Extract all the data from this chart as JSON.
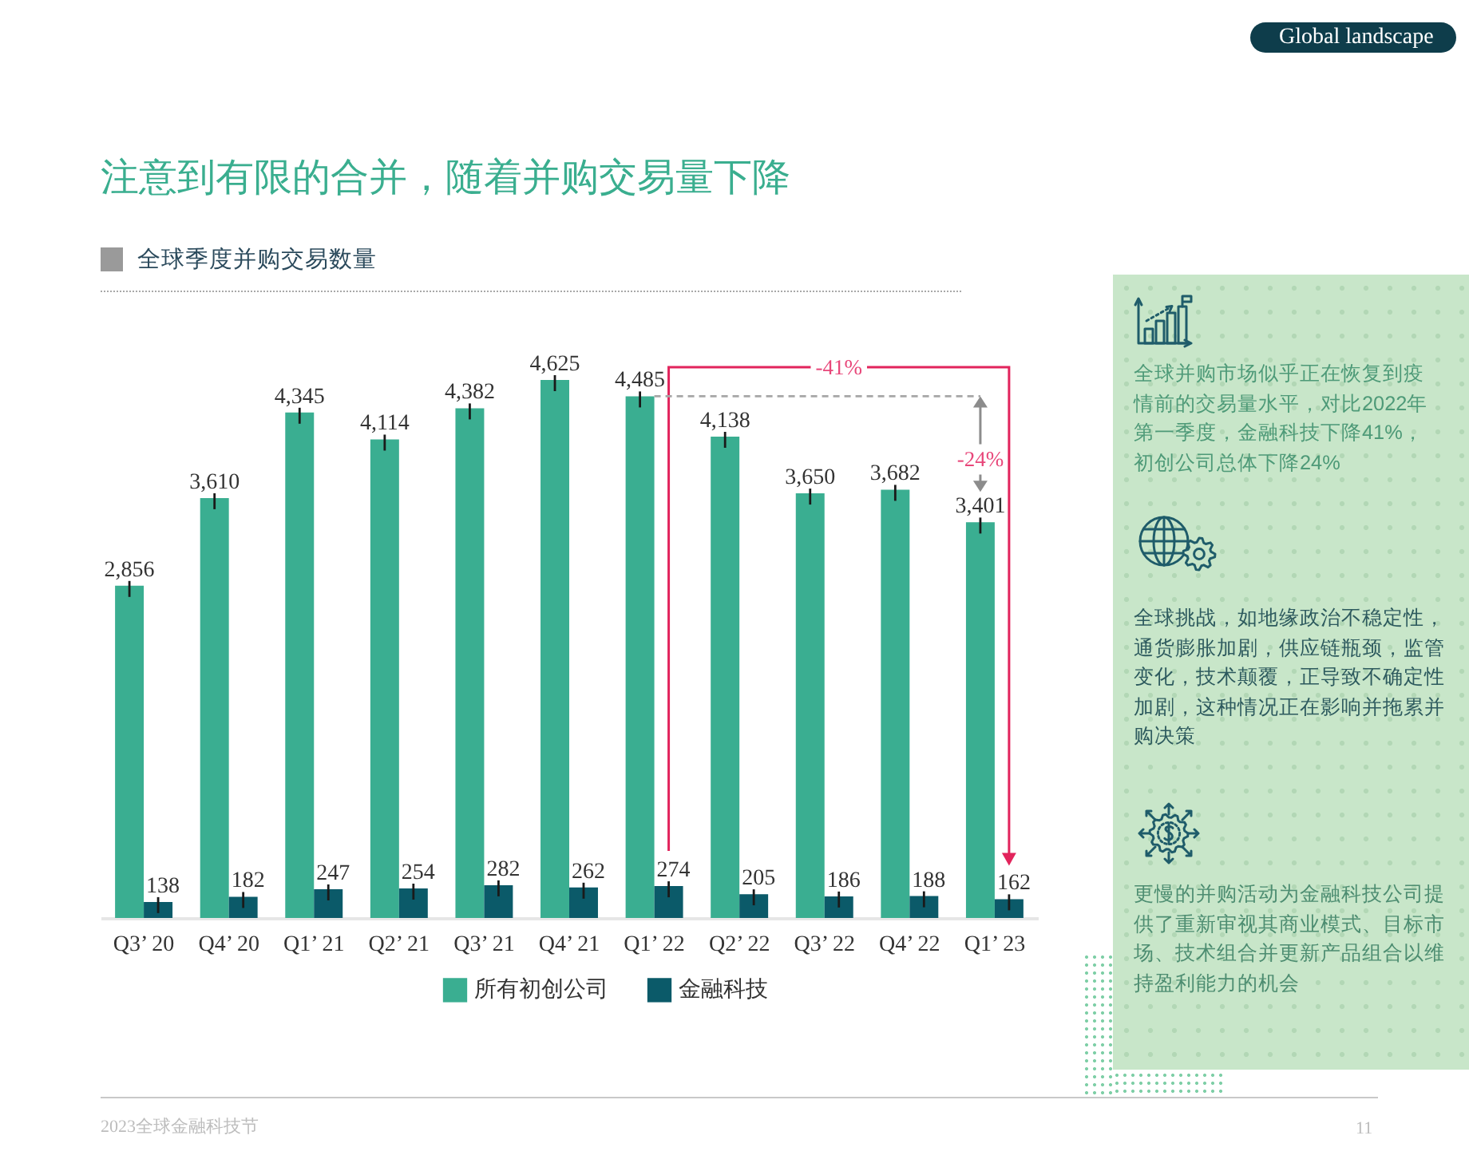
{
  "chart_data": [
    {
      "type": "bar",
      "title": "注意到有限的合并，随着并购交易量下降",
      "subtitle": "全球季度并购交易数量",
      "categories": [
        "Q3’ 20",
        "Q4’ 20",
        "Q1’ 21",
        "Q2’ 21",
        "Q3’ 21",
        "Q4’ 21",
        "Q1’ 22",
        "Q2’ 22",
        "Q3’ 22",
        "Q4’ 22",
        "Q1’ 23"
      ],
      "series": [
        {
          "name": "所有初创公司",
          "color": "#3aae91",
          "values": [
            2856,
            3610,
            4345,
            4114,
            4382,
            4625,
            4485,
            4138,
            3650,
            3682,
            3401
          ],
          "value_labels": [
            "2,856",
            "3,610",
            "4,345",
            "4,114",
            "4,382",
            "4,625",
            "4,485",
            "4,138",
            "3,650",
            "3,682",
            "3,401"
          ]
        },
        {
          "name": "金融科技",
          "color": "#0b5a69",
          "values": [
            138,
            182,
            247,
            254,
            282,
            262,
            274,
            205,
            186,
            188,
            162
          ],
          "value_labels": [
            "138",
            "182",
            "247",
            "254",
            "282",
            "262",
            "274",
            "205",
            "186",
            "188",
            "162"
          ]
        }
      ],
      "legend": "bottom",
      "tick_labels": "x",
      "annotations": [
        "-41%",
        "-24%",
        "Global landscape",
        "2023全球金融科技节",
        "11"
      ]
    },
    {
      "type": "other",
      "annotations": [
        "全球并购市场似乎正在恢复到疫情前的交易量水平，对比2022年第一季度，金融科技下降41%，初创公司总体下降24%",
        "全球挑战，如地缘政治不稳定性，通货膨胀加剧，供应链瓶颈，监管变化，技术颠覆，正导致不确定性加剧，这种情况正在影响并拖累并购决策",
        "更慢的并购活动为金融科技公司提供了重新审视其商业模式、目标市场、技术组合并更新产品组合以维持盈利能力的机会"
      ]
    }
  ]
}
